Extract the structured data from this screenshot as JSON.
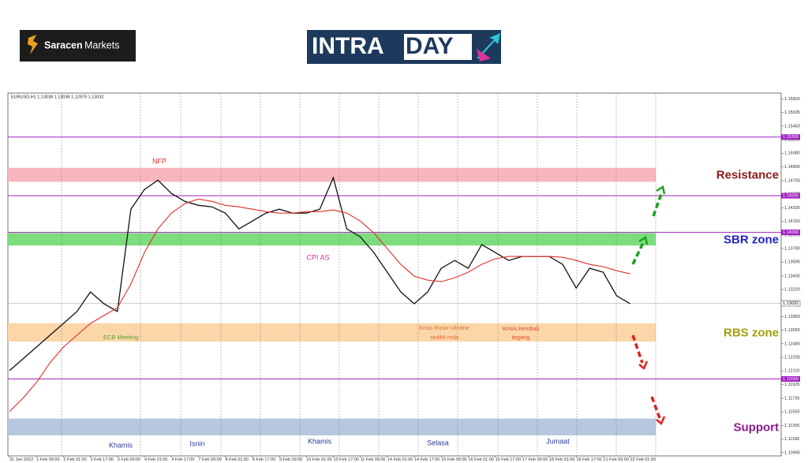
{
  "header": {
    "brand_left": "Saracen",
    "brand_right": "Markets",
    "logo_intra": "INTRA",
    "logo_day": "DAY"
  },
  "chart_data": {
    "type": "line",
    "symbol_info": "EURUSD,H1  1.13038 1.13039 1.12979 1.13032",
    "categories": [
      "31 Jan 2022",
      null,
      "1 Feb 09:00",
      null,
      "2 Feb 01:00",
      null,
      "2 Feb 17:00",
      null,
      "3 Feb 09:00",
      null,
      "4 Feb 01:00",
      null,
      "4 Feb 17:00",
      null,
      "7 Feb 09:00",
      null,
      "8 Feb 01:00",
      null,
      "8 Feb 17:00",
      null,
      "9 Feb 09:00",
      null,
      "10 Feb 01:00",
      null,
      "10 Feb 17:00",
      null,
      "11 Feb 09:00",
      null,
      "14 Feb 01:00",
      null,
      "14 Feb 17:00",
      null,
      "15 Feb 09:00",
      null,
      "16 Feb 01:00",
      null,
      "16 Feb 17:00",
      null,
      "17 Feb 09:00",
      null,
      "18 Feb 01:00",
      null,
      "18 Feb 17:00",
      null,
      "21 Feb 09:00",
      null,
      "22 Feb 01:00"
    ],
    "series": [
      {
        "color": "#111111",
        "values": [
          1.12113,
          1.12274,
          1.12435,
          1.12596,
          1.12757,
          1.12919,
          1.13187,
          1.13026,
          1.12919,
          1.14316,
          1.14584,
          1.14713,
          1.14531,
          1.14423,
          1.14369,
          1.14348,
          1.14262,
          1.14047,
          1.14154,
          1.14262,
          1.14316,
          1.14262,
          1.14262,
          1.14316,
          1.14745,
          1.14047,
          1.13939,
          1.13725,
          1.13456,
          1.13187,
          1.13026,
          1.13187,
          1.1351,
          1.13617,
          1.1351,
          1.13832,
          1.13725,
          1.13617,
          1.13671,
          1.13671,
          1.13671,
          1.13563,
          1.13241,
          1.1351,
          1.13456,
          1.13134,
          1.13026
        ]
      },
      {
        "color": "#e0302a",
        "values": [
          1.11554,
          1.11737,
          1.11952,
          1.1222,
          1.12435,
          1.12596,
          1.12757,
          1.12865,
          1.12972,
          1.13295,
          1.13725,
          1.14047,
          1.14262,
          1.14391,
          1.14455,
          1.14423,
          1.14369,
          1.14348,
          1.14316,
          1.14283,
          1.14262,
          1.14262,
          1.14283,
          1.14283,
          1.14305,
          1.14262,
          1.14154,
          1.13993,
          1.13778,
          1.13563,
          1.13402,
          1.13348,
          1.13327,
          1.13381,
          1.13456,
          1.13563,
          1.13639,
          1.13671,
          1.13671,
          1.13671,
          1.13671,
          1.1366,
          1.13617,
          1.13563,
          1.13531,
          1.13477,
          1.13434
        ]
      }
    ],
    "ylim": [
      1.1095,
      1.159
    ],
    "yticks": [
      {
        "value": 1.1582,
        "label": "1.15820"
      },
      {
        "value": 1.15635,
        "label": "1.15635"
      },
      {
        "value": 1.1545,
        "label": "1.15450"
      },
      {
        "value": 1.15265,
        "label": "1.15265"
      },
      {
        "value": 1.1508,
        "label": "1.15080"
      },
      {
        "value": 1.14895,
        "label": "1.14895"
      },
      {
        "value": 1.14705,
        "label": "1.14705"
      },
      {
        "value": 1.1452,
        "label": "1.14520"
      },
      {
        "value": 1.14335,
        "label": "1.14335"
      },
      {
        "value": 1.1415,
        "label": "1.14150"
      },
      {
        "value": 1.13965,
        "label": "1.13965"
      },
      {
        "value": 1.1378,
        "label": "1.13780"
      },
      {
        "value": 1.13595,
        "label": "1.13595"
      },
      {
        "value": 1.13405,
        "label": "1.13405"
      },
      {
        "value": 1.1322,
        "label": "1.13220"
      },
      {
        "value": 1.13035,
        "label": "1.13035"
      },
      {
        "value": 1.1285,
        "label": "1.12850"
      },
      {
        "value": 1.12665,
        "label": "1.12665"
      },
      {
        "value": 1.1248,
        "label": "1.12480"
      },
      {
        "value": 1.12295,
        "label": "1.12295"
      },
      {
        "value": 1.1211,
        "label": "1.12110"
      },
      {
        "value": 1.11925,
        "label": "1.11925"
      },
      {
        "value": 1.11735,
        "label": "1.11735"
      },
      {
        "value": 1.1155,
        "label": "1.11550"
      },
      {
        "value": 1.11365,
        "label": "1.11365"
      },
      {
        "value": 1.1118,
        "label": "1.11180"
      },
      {
        "value": 1.10995,
        "label": "1.10995"
      }
    ],
    "levels": [
      {
        "value": 1.153,
        "label": "1.15300"
      },
      {
        "value": 1.145,
        "label": "1.14500"
      },
      {
        "value": 1.14,
        "label": "1.14000"
      },
      {
        "value": 1.12,
        "label": "1.12000"
      }
    ],
    "level_color": "#a020c0",
    "current_price": {
      "value": 1.13032,
      "label": "1.13032"
    },
    "zones": [
      {
        "label": "Resistance",
        "color": "#f7b6bd",
        "label_color": "#8b1a1a",
        "range": [
          1.1469,
          1.1488
        ]
      },
      {
        "label": "SBR zone",
        "color": "#7ddc7d",
        "label_color": "#2424c0",
        "range": [
          1.1382,
          1.1399
        ]
      },
      {
        "label": "RBS zone",
        "color": "#fbd6a8",
        "label_color": "#a0a010",
        "range": [
          1.1251,
          1.1276
        ]
      },
      {
        "label": "Support",
        "color": "#b7c7de",
        "label_color": "#8a1a8a",
        "range": [
          1.1123,
          1.1146
        ]
      }
    ],
    "annotations": [
      {
        "text": "NFP",
        "color": "#e03030"
      },
      {
        "text": "CPI AS",
        "color": "#e0309a"
      },
      {
        "text": "ECB Meeting",
        "color": "#58a030"
      },
      {
        "text": "Krisis Rusia-Ukraine",
        "color": "#e06a30"
      },
      {
        "text": "sedikit reda",
        "color": "#e06a30"
      },
      {
        "text": "Krisis kembali",
        "color": "#e04a30"
      },
      {
        "text": "tegang",
        "color": "#e04a30"
      },
      {
        "text": "Khamis",
        "color": "#2a3a9a"
      },
      {
        "text": "Isnin",
        "color": "#2a3a9a"
      },
      {
        "text": "Khamis",
        "color": "#2a3a9a"
      },
      {
        "text": "Selasa",
        "color": "#2a3a9a"
      },
      {
        "text": "Jumaat",
        "color": "#2a3a9a"
      }
    ]
  }
}
